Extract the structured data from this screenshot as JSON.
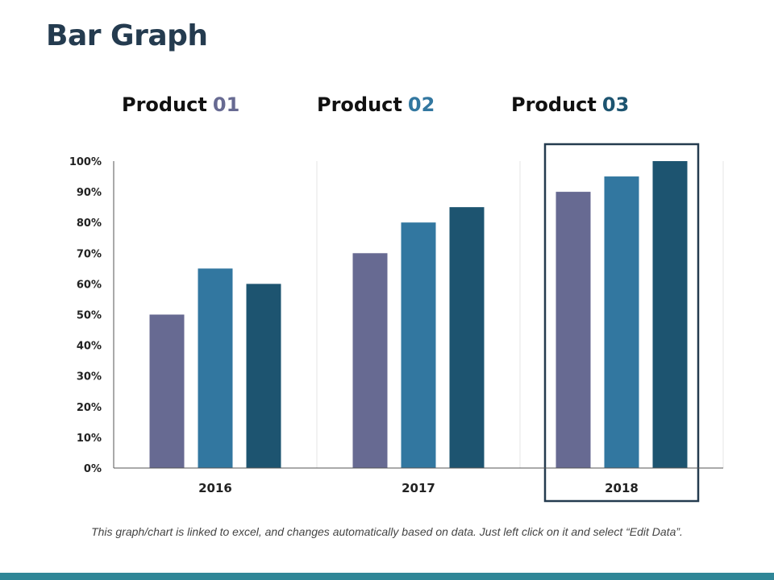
{
  "slide": {
    "title": "Bar Graph",
    "footnote": "This graph/chart is linked to excel, and changes automatically based on data. Just left click on it and select “Edit Data”."
  },
  "legend": [
    {
      "word": "Product",
      "num": "01",
      "num_color": "#676a92"
    },
    {
      "word": "Product",
      "num": "02",
      "num_color": "#3277a0"
    },
    {
      "word": "Product",
      "num": "03",
      "num_color": "#1d5470"
    }
  ],
  "colors": {
    "series": [
      "#676a92",
      "#3277a0",
      "#1d5470"
    ],
    "title": "#243b4f",
    "highlight_box": "#243b4f",
    "bottom_bar": "#2f8697"
  },
  "chart_data": {
    "type": "bar",
    "categories": [
      "2016",
      "2017",
      "2018"
    ],
    "series": [
      {
        "name": "Product 01",
        "values": [
          50,
          70,
          90
        ]
      },
      {
        "name": "Product 02",
        "values": [
          65,
          80,
          95
        ]
      },
      {
        "name": "Product 03",
        "values": [
          60,
          85,
          100
        ]
      }
    ],
    "yticks": [
      "0%",
      "10%",
      "20%",
      "30%",
      "40%",
      "50%",
      "60%",
      "70%",
      "80%",
      "90%",
      "100%"
    ],
    "ylim": [
      0,
      100
    ],
    "title": "",
    "xlabel": "",
    "ylabel": "",
    "grid": "vertical separators",
    "highlight_category": "2018"
  }
}
